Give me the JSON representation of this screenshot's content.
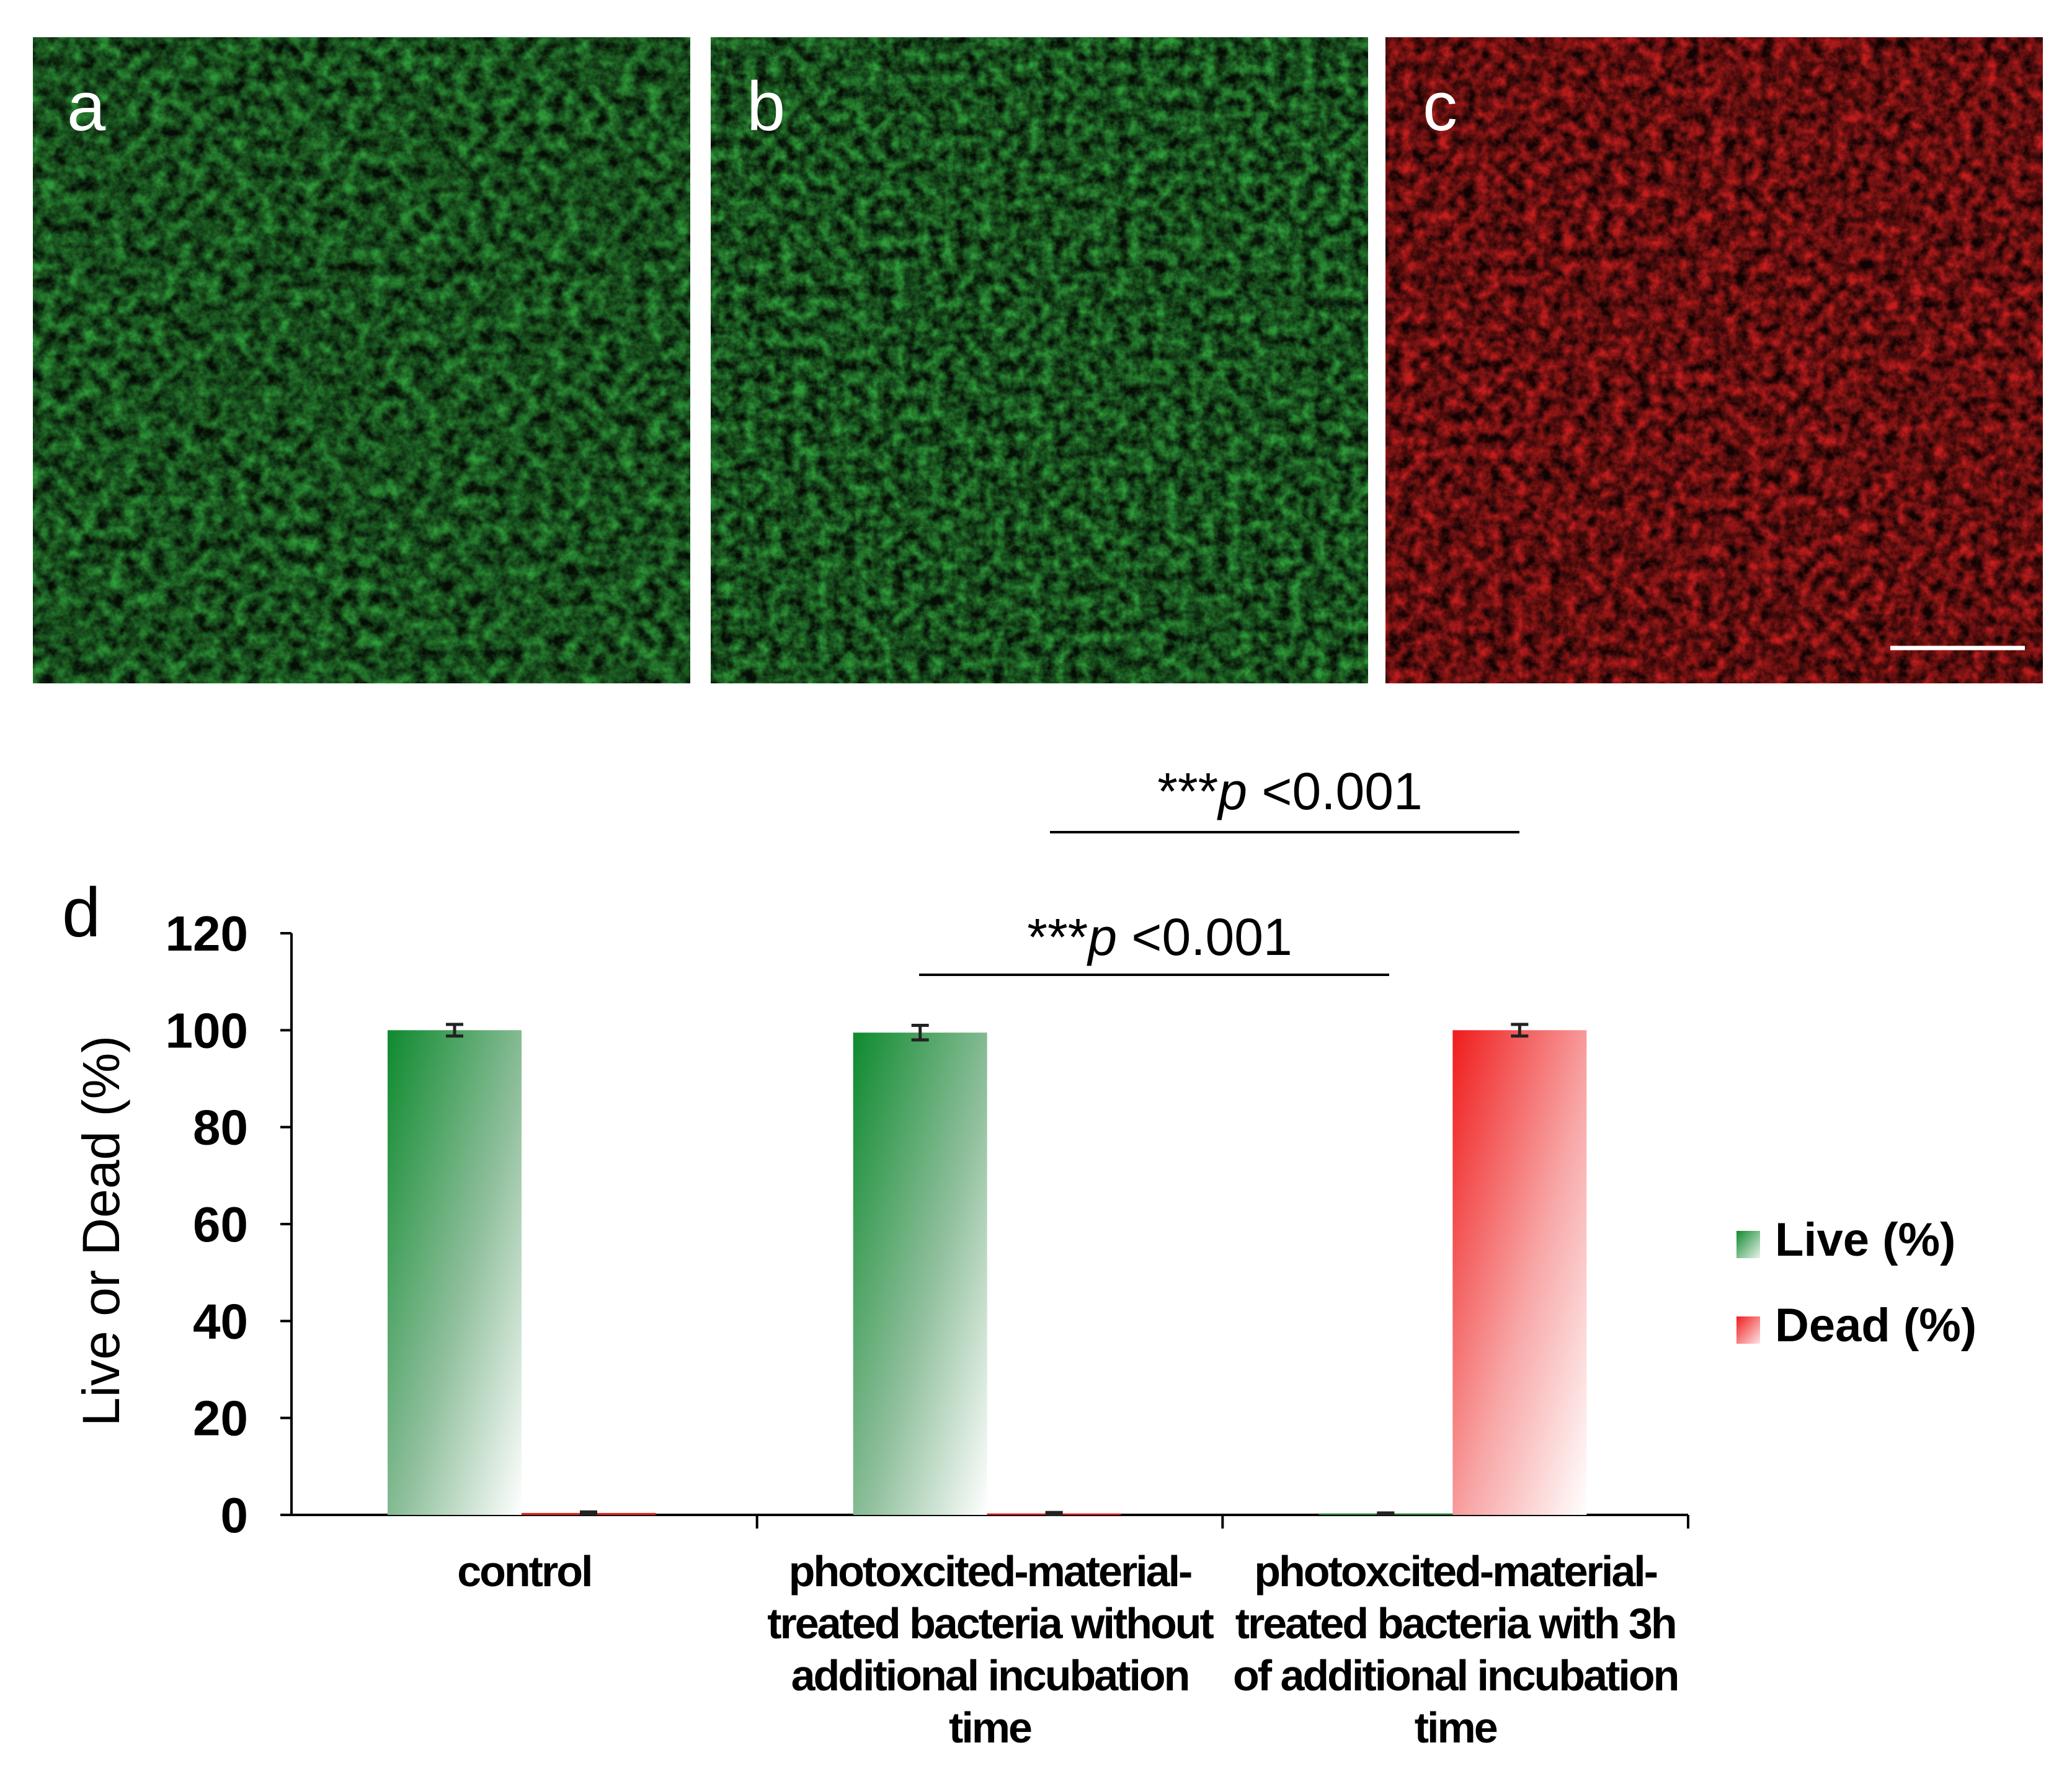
{
  "panels": [
    {
      "label": "a",
      "channel": "green",
      "color": "#2f9c3a"
    },
    {
      "label": "b",
      "channel": "green",
      "color": "#2f9c3a"
    },
    {
      "label": "c",
      "channel": "red",
      "color": "#c81e1e",
      "has_scale_bar": true
    }
  ],
  "chart_data": {
    "type": "bar",
    "panel_label": "d",
    "ylabel": "Live or Dead (%)",
    "xlabel": "",
    "ylim": [
      0,
      120
    ],
    "yticks": [
      0,
      20,
      40,
      60,
      80,
      100,
      120
    ],
    "categories": [
      [
        "control"
      ],
      [
        "photoxcited-material-",
        "treated bacteria without",
        "additional incubation",
        "time"
      ],
      [
        "photoxcited-material-",
        "treated bacteria with 3h",
        "of additional incubation",
        "time"
      ]
    ],
    "series": [
      {
        "name": "Live (%)",
        "values": [
          100,
          99.5,
          0.3
        ],
        "errors": [
          1.2,
          1.5,
          0.1
        ],
        "color": "#1d8a3a"
      },
      {
        "name": "Dead (%)",
        "values": [
          0.4,
          0.3,
          100
        ],
        "errors": [
          0.2,
          0.2,
          1.2
        ],
        "color": "#f01e1e"
      }
    ],
    "legend_position": "right",
    "significance": [
      {
        "text_prefix": "***",
        "text_italic": "p",
        "text_suffix": " <0.001",
        "from_category": 1,
        "to_category": 2,
        "level": 1
      },
      {
        "text_prefix": "***",
        "text_italic": "p",
        "text_suffix": " <0.001",
        "from_category": 1,
        "to_category": 2,
        "level": 2
      }
    ]
  }
}
